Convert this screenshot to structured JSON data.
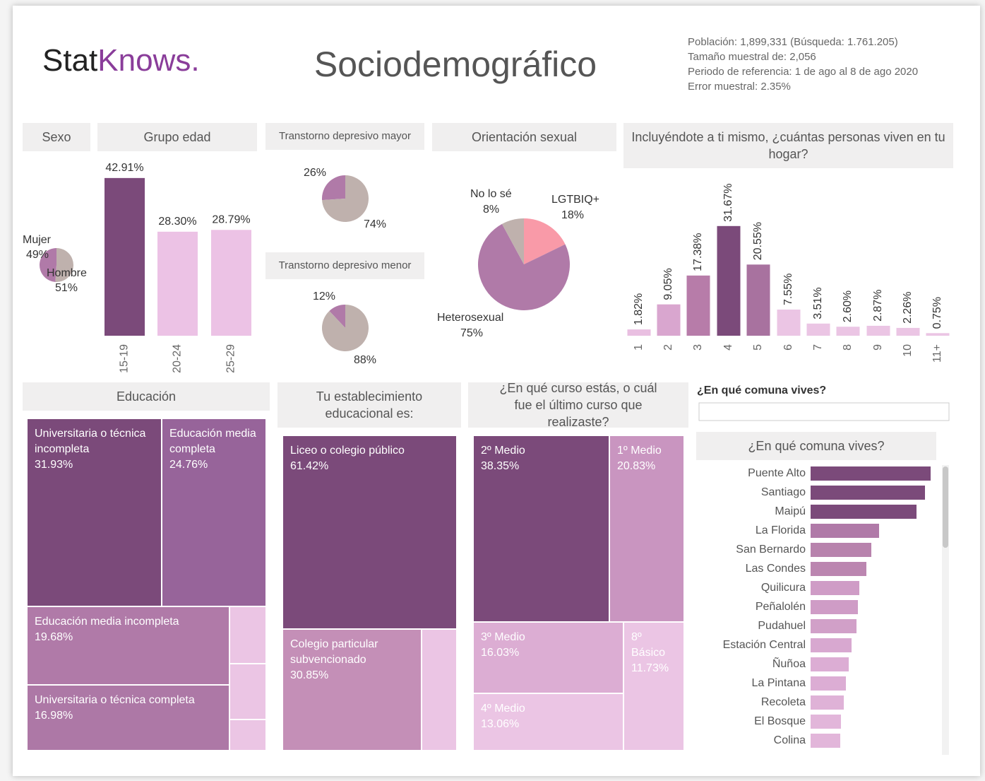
{
  "header": {
    "logo_a": "Stat",
    "logo_b": "Knows.",
    "title": "Sociodemográfico",
    "info": [
      "Población: 1,899,331 (Búsqueda: 1.761.205)",
      "Tamaño muestral de: 2,056",
      "Periodo de referencia: 1 de ago al 8 de ago 2020",
      "Error muestral: 2.35%"
    ]
  },
  "filter": {
    "label": "¿En qué comuna vives?"
  },
  "chart_data": [
    {
      "type": "pie",
      "title": "Sexo",
      "categories": [
        "Mujer",
        "Hombre"
      ],
      "values": [
        49,
        51
      ],
      "value_labels": [
        "49%",
        "51%"
      ],
      "colors": [
        "#b07aa8",
        "#bfb1ad"
      ]
    },
    {
      "type": "bar",
      "title": "Grupo edad",
      "categories": [
        "15-19",
        "20-24",
        "25-29"
      ],
      "values": [
        42.91,
        28.3,
        28.79
      ],
      "value_labels": [
        "42.91%",
        "28.30%",
        "28.79%"
      ],
      "colors": [
        "#7b4a7a",
        "#ecc2e5",
        "#ecc2e5"
      ]
    },
    {
      "type": "pie",
      "title": "Transtorno depresivo mayor",
      "values": [
        26,
        74
      ],
      "value_labels": [
        "26%",
        "74%"
      ],
      "colors": [
        "#b07aa8",
        "#bfb1ad"
      ]
    },
    {
      "type": "pie",
      "title": "Transtorno depresivo menor",
      "values": [
        12,
        88
      ],
      "value_labels": [
        "12%",
        "88%"
      ],
      "colors": [
        "#b07aa8",
        "#bfb1ad"
      ]
    },
    {
      "type": "pie",
      "title": "Orientación sexual",
      "categories": [
        "LGTBIQ+",
        "Heterosexual",
        "No lo sé"
      ],
      "values": [
        18,
        75,
        8
      ],
      "value_labels": [
        "18%",
        "75%",
        "8%"
      ],
      "colors": [
        "#f99aa8",
        "#b07aa8",
        "#bfb1ad"
      ]
    },
    {
      "type": "bar",
      "title": "Incluyéndote a ti mismo, ¿cuántas personas viven en tu hogar?",
      "categories": [
        "1",
        "2",
        "3",
        "4",
        "5",
        "6",
        "7",
        "8",
        "9",
        "10",
        "11+"
      ],
      "values": [
        1.82,
        9.05,
        17.38,
        31.67,
        20.55,
        7.55,
        3.51,
        2.6,
        2.87,
        2.26,
        0.75
      ],
      "value_labels": [
        "1.82%",
        "9.05%",
        "17.38%",
        "31.67%",
        "20.55%",
        "7.55%",
        "3.51%",
        "2.60%",
        "2.87%",
        "2.26%",
        "0.75%"
      ],
      "colors": [
        "#e9bfe1",
        "#d9a6cf",
        "#b77ca9",
        "#7b4a7a",
        "#a8729f",
        "#ebc5e4",
        "#ebc5e4",
        "#ebc5e4",
        "#ebc5e4",
        "#ebc5e4",
        "#ebc5e4"
      ]
    },
    {
      "type": "treemap",
      "title": "Educación",
      "categories": [
        "Universitaria o técnica incompleta",
        "Educación media completa",
        "Educación media incompleta",
        "Universitaria o técnica completa"
      ],
      "values": [
        31.93,
        24.76,
        19.68,
        16.98
      ],
      "value_labels": [
        "31.93%",
        "24.76%",
        "19.68%",
        "16.98%"
      ],
      "colors": [
        "#7b4a7a",
        "#97649a",
        "#b07aa8",
        "#ad78a6"
      ]
    },
    {
      "type": "treemap",
      "title": "Tu establecimiento educacional es:",
      "categories": [
        "Liceo o colegio público",
        "Colegio particular subvencionado"
      ],
      "values": [
        61.42,
        30.85
      ],
      "value_labels": [
        "61.42%",
        "30.85%"
      ],
      "colors": [
        "#7b4a7a",
        "#c48fb7"
      ]
    },
    {
      "type": "treemap",
      "title": "¿En qué curso estás, o cuál fue el último curso que realizaste?",
      "categories": [
        "2º Medio",
        "1º Medio",
        "3º Medio",
        "8º Básico",
        "4º Medio"
      ],
      "values": [
        38.35,
        20.83,
        16.03,
        11.73,
        13.06
      ],
      "value_labels": [
        "38.35%",
        "20.83%",
        "16.03%",
        "11.73%",
        "13.06%"
      ],
      "colors": [
        "#7b4a7a",
        "#c995c0",
        "#dcadd3",
        "#ebc5e4",
        "#ebc5e4"
      ]
    },
    {
      "type": "barh",
      "title": "¿En qué comuna vives?",
      "categories": [
        "Puente Alto",
        "Santiago",
        "Maipú",
        "La Florida",
        "San Bernardo",
        "Las Condes",
        "Quilicura",
        "Peñalolén",
        "Pudahuel",
        "Estación Central",
        "Ñuñoa",
        "La Pintana",
        "Recoleta",
        "El Bosque",
        "Colina"
      ],
      "values": [
        170,
        162,
        150,
        97,
        86,
        79,
        69,
        67,
        65,
        58,
        54,
        50,
        47,
        43,
        42
      ],
      "colors": [
        "#7b4a7a",
        "#7b4a7a",
        "#7b4a7a",
        "#b07aa8",
        "#b883ad",
        "#bb86b0",
        "#cf9cc6",
        "#cf9cc6",
        "#d1a0c8",
        "#d8a8d0",
        "#dcadd4",
        "#dcadd4",
        "#dfb2d7",
        "#e2b6da",
        "#e2b6da"
      ]
    }
  ]
}
